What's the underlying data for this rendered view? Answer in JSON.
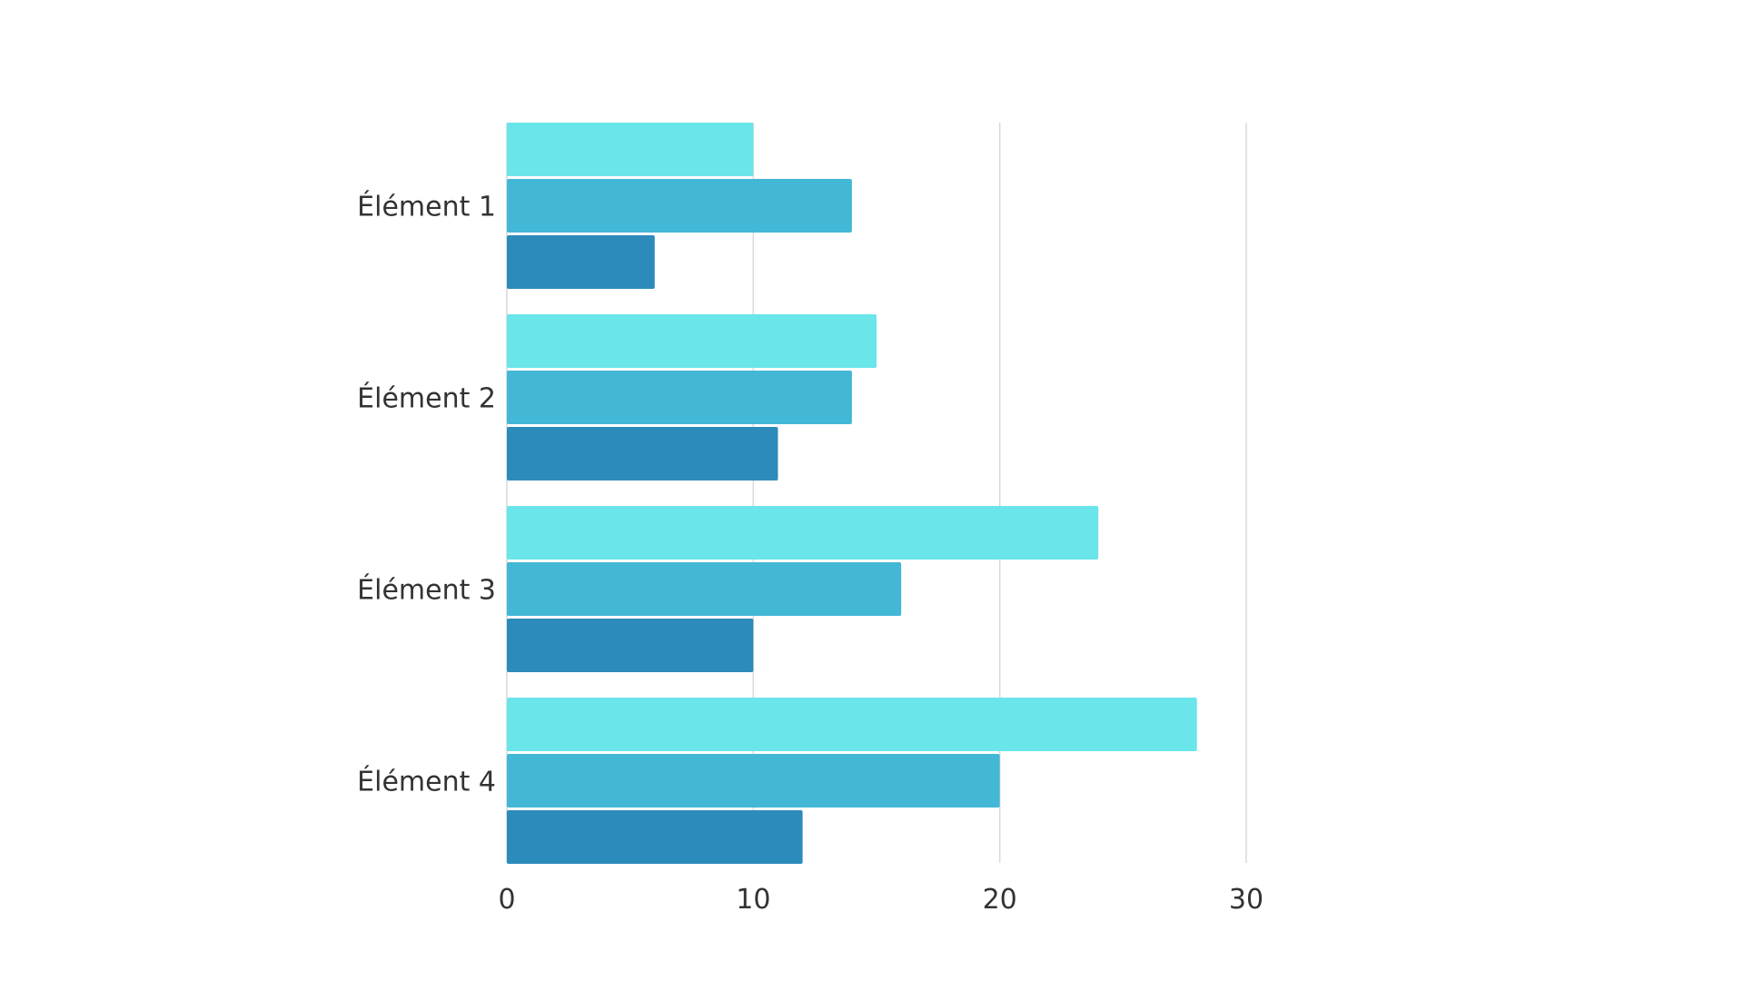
{
  "chart_data": {
    "type": "bar",
    "orientation": "horizontal",
    "categories": [
      "Élément 1",
      "Élément 2",
      "Élément 3",
      "Élément 4"
    ],
    "series": [
      {
        "values": [
          10,
          15,
          24,
          28
        ],
        "color": "#6ae5e9"
      },
      {
        "values": [
          14,
          14,
          16,
          20
        ],
        "color": "#42b7d6"
      },
      {
        "values": [
          6,
          11,
          10,
          12
        ],
        "color": "#2c8bbb"
      }
    ],
    "xlim": [
      0,
      30
    ],
    "xticks": [
      "0",
      "10",
      "20",
      "30"
    ],
    "title": "",
    "xlabel": "",
    "ylabel": "",
    "grid": "vertical",
    "legend": "none"
  }
}
